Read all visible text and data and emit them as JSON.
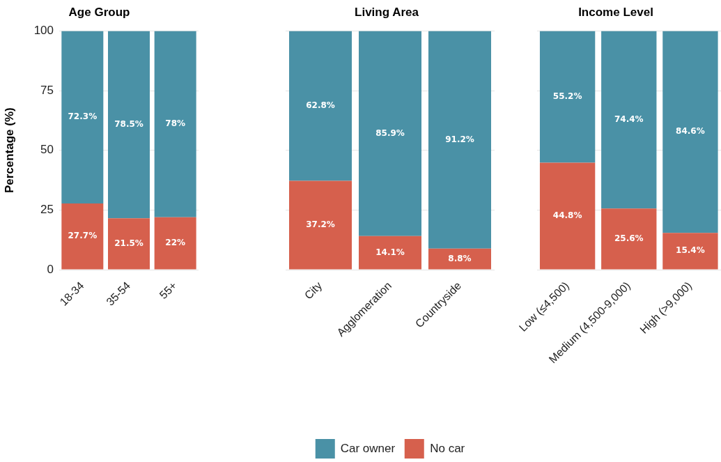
{
  "chart_data": [
    {
      "type": "bar",
      "title": "Age Group",
      "ylabel": "Percentage (%)",
      "categories": [
        "18-34",
        "35-54",
        "55+"
      ],
      "stacked": true,
      "ylim": [
        0,
        100
      ],
      "yticks": [
        0,
        25,
        50,
        75,
        100
      ],
      "grid": "y",
      "series": [
        {
          "color": "#d6604d",
          "values": [
            27.7,
            21.5,
            22
          ],
          "value_labels": [
            "27.7%",
            "21.5%",
            "22%"
          ]
        },
        {
          "color": "#4a91a6",
          "values": [
            72.3,
            78.5,
            78
          ],
          "value_labels": [
            "72.3%",
            "78.5%",
            "78%"
          ]
        }
      ]
    },
    {
      "type": "bar",
      "title": "Living Area",
      "categories": [
        "City",
        "Agglomeration",
        "Countryside"
      ],
      "stacked": true,
      "ylim": [
        0,
        100
      ],
      "yticks": [
        0,
        25,
        50,
        75,
        100
      ],
      "grid": "y",
      "tick_labels": "x",
      "legend": "bottom",
      "series": [
        {
          "name": "No car",
          "color": "#d6604d",
          "values": [
            37.2,
            14.1,
            8.8
          ],
          "value_labels": [
            "37.2%",
            "14.1%",
            "8.8%"
          ]
        },
        {
          "name": "Car owner",
          "color": "#4a91a6",
          "values": [
            62.8,
            85.9,
            91.2
          ],
          "value_labels": [
            "62.8%",
            "85.9%",
            "91.2%"
          ]
        }
      ]
    },
    {
      "type": "bar",
      "title": "Income Level",
      "categories": [
        "Low (≤4,500)",
        "Medium (4,500-9,000)",
        "High (>9,000)"
      ],
      "stacked": true,
      "ylim": [
        0,
        100
      ],
      "yticks": [
        0,
        25,
        50,
        75,
        100
      ],
      "grid": "y",
      "tick_labels": "x",
      "series": [
        {
          "color": "#d6604d",
          "values": [
            44.8,
            25.6,
            15.4
          ],
          "value_labels": [
            "44.8%",
            "25.6%",
            "15.4%"
          ]
        },
        {
          "color": "#4a91a6",
          "values": [
            55.2,
            74.4,
            84.6
          ],
          "value_labels": [
            "55.2%",
            "74.4%",
            "84.6%"
          ]
        }
      ]
    }
  ]
}
